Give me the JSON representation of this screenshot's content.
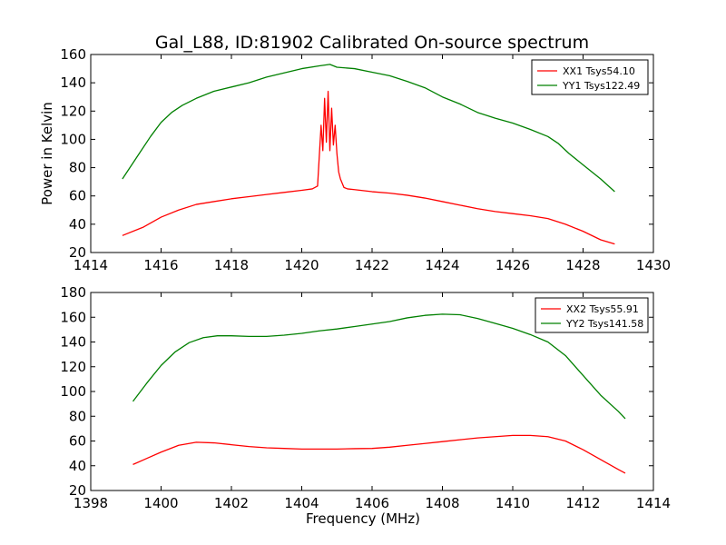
{
  "title": "Gal_L88, ID:81902 Calibrated On-source spectrum",
  "chart_data": [
    {
      "type": "line",
      "xlabel": "",
      "ylabel": "Power in Kelvin",
      "xlim": [
        1414,
        1430
      ],
      "ylim": [
        20,
        160
      ],
      "xticks": [
        1414,
        1416,
        1418,
        1420,
        1422,
        1424,
        1426,
        1428,
        1430
      ],
      "yticks": [
        20,
        40,
        60,
        80,
        100,
        120,
        140,
        160
      ],
      "grid": false,
      "legend_position": "top-right",
      "series": [
        {
          "name": "XX1 Tsys54.10",
          "color": "#ff0000",
          "x": [
            1414.9,
            1415.5,
            1416.0,
            1416.5,
            1417.0,
            1417.5,
            1418.0,
            1418.5,
            1419.0,
            1419.5,
            1420.0,
            1420.3,
            1420.45,
            1420.55,
            1420.6,
            1420.65,
            1420.7,
            1420.75,
            1420.8,
            1420.85,
            1420.9,
            1420.95,
            1421.0,
            1421.05,
            1421.1,
            1421.2,
            1421.3,
            1421.5,
            1422.0,
            1422.5,
            1423.0,
            1423.5,
            1424.0,
            1424.5,
            1425.0,
            1425.5,
            1426.0,
            1426.5,
            1427.0,
            1427.5,
            1428.0,
            1428.5,
            1428.9
          ],
          "y": [
            32,
            38,
            45,
            50,
            54,
            56,
            58,
            59.5,
            61,
            62.5,
            64,
            65,
            67,
            110,
            92,
            129,
            98,
            134,
            92,
            122,
            96,
            110,
            90,
            77,
            72,
            66,
            65,
            64.5,
            63,
            62,
            60.5,
            58.5,
            56,
            53.5,
            51,
            49,
            47.5,
            46,
            44,
            40,
            35,
            29,
            26
          ]
        },
        {
          "name": "YY1 Tsys122.49",
          "color": "#008000",
          "x": [
            1414.9,
            1415.3,
            1415.7,
            1416.0,
            1416.3,
            1416.6,
            1417.0,
            1417.5,
            1418.0,
            1418.5,
            1419.0,
            1419.5,
            1420.0,
            1420.5,
            1420.8,
            1421.0,
            1421.5,
            1422.0,
            1422.5,
            1423.0,
            1423.5,
            1424.0,
            1424.5,
            1425.0,
            1425.5,
            1426.0,
            1426.5,
            1427.0,
            1427.3,
            1427.6,
            1428.0,
            1428.5,
            1428.9
          ],
          "y": [
            72,
            87,
            102,
            112,
            119,
            124,
            129,
            134,
            137,
            140,
            144,
            147,
            150,
            152,
            153,
            151,
            150,
            147.5,
            145,
            141,
            136.5,
            130,
            125,
            119,
            115,
            111.5,
            107,
            102,
            97,
            90,
            82,
            72,
            63
          ]
        }
      ]
    },
    {
      "type": "line",
      "xlabel": "Frequency (MHz)",
      "ylabel": "",
      "xlim": [
        1398,
        1414
      ],
      "ylim": [
        20,
        180
      ],
      "xticks": [
        1398,
        1400,
        1402,
        1404,
        1406,
        1408,
        1410,
        1412,
        1414
      ],
      "yticks": [
        20,
        40,
        60,
        80,
        100,
        120,
        140,
        160,
        180
      ],
      "grid": false,
      "legend_position": "top-right",
      "series": [
        {
          "name": "XX2 Tsys55.91",
          "color": "#ff0000",
          "x": [
            1399.2,
            1399.6,
            1400.0,
            1400.5,
            1401.0,
            1401.5,
            1402.0,
            1402.5,
            1403.0,
            1403.5,
            1404.0,
            1404.5,
            1405.0,
            1405.5,
            1406.0,
            1406.5,
            1407.0,
            1407.5,
            1408.0,
            1408.5,
            1409.0,
            1409.5,
            1410.0,
            1410.5,
            1411.0,
            1411.5,
            1412.0,
            1412.5,
            1413.0,
            1413.2
          ],
          "y": [
            41,
            46,
            51,
            56.5,
            59,
            58.5,
            57,
            55.5,
            54.5,
            54,
            53.5,
            53.5,
            53.5,
            53.8,
            54,
            55,
            56.5,
            58,
            59.5,
            61,
            62.5,
            63.5,
            64.5,
            64.5,
            63.5,
            60,
            53,
            45,
            37,
            34
          ]
        },
        {
          "name": "YY2 Tsys141.58",
          "color": "#008000",
          "x": [
            1399.2,
            1399.6,
            1400.0,
            1400.4,
            1400.8,
            1401.2,
            1401.6,
            1402.0,
            1402.5,
            1403.0,
            1403.5,
            1404.0,
            1404.5,
            1405.0,
            1405.5,
            1406.0,
            1406.5,
            1407.0,
            1407.5,
            1408.0,
            1408.5,
            1409.0,
            1409.5,
            1410.0,
            1410.5,
            1411.0,
            1411.5,
            1412.0,
            1412.5,
            1413.0,
            1413.2
          ],
          "y": [
            92,
            107,
            121,
            132,
            139.5,
            143.5,
            145,
            145,
            144.5,
            144.5,
            145.5,
            147,
            149,
            150.5,
            152.5,
            154.5,
            156.5,
            159.5,
            161.5,
            162.5,
            162,
            159,
            155,
            151,
            146,
            140,
            129,
            113,
            97,
            84,
            78
          ]
        }
      ]
    }
  ]
}
